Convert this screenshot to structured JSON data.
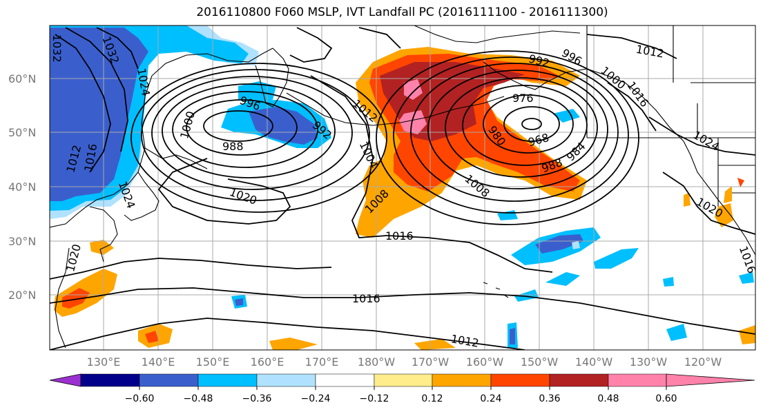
{
  "title": "2016110800 F060 MSLP, IVT Landfall PC (2016111100 - 2016111300)",
  "lat_labels": [
    "60°N",
    "50°N",
    "40°N",
    "30°N",
    "20°N"
  ],
  "lon_labels": [
    "130°E",
    "140°E",
    "150°E",
    "160°E",
    "170°E",
    "180°W",
    "170°W",
    "160°W",
    "150°W",
    "140°W",
    "130°W",
    "120°W"
  ],
  "contour_labels": [
    "1032",
    "1032",
    "1024",
    "1012",
    "1016",
    "1024",
    "1020",
    "1000",
    "988",
    "996",
    "992",
    "1012",
    "1004",
    "1008",
    "1020",
    "1016",
    "1016",
    "1012",
    "1008",
    "980",
    "976",
    "968",
    "984",
    "988",
    "992",
    "996",
    "1000",
    "1012",
    "1016",
    "1024",
    "1020",
    "1016"
  ],
  "colorbar": {
    "colors": [
      "#9b30d0",
      "#00008b",
      "#3a5fcd",
      "#00bfff",
      "#b0e2ff",
      "#ffffff",
      "#ffec8b",
      "#ffa500",
      "#ff4500",
      "#b22222",
      "#ff82ab"
    ],
    "tick_labels": [
      "−0.60",
      "−0.48",
      "−0.36",
      "−0.24",
      "−0.12",
      "0.12",
      "0.24",
      "0.36",
      "0.48",
      "0.60"
    ]
  },
  "colors": {
    "orange": "#ffa500",
    "orangered": "#ff4500",
    "firebrick": "#b22222",
    "pink": "#ff82ab",
    "yellow": "#ffec8b",
    "deepskyblue": "#00bfff",
    "royalblue": "#3a5fcd",
    "lightblue": "#b0e2ff",
    "navy": "#00008b",
    "gridline": "#aaaaaa",
    "contour": "#000000"
  }
}
